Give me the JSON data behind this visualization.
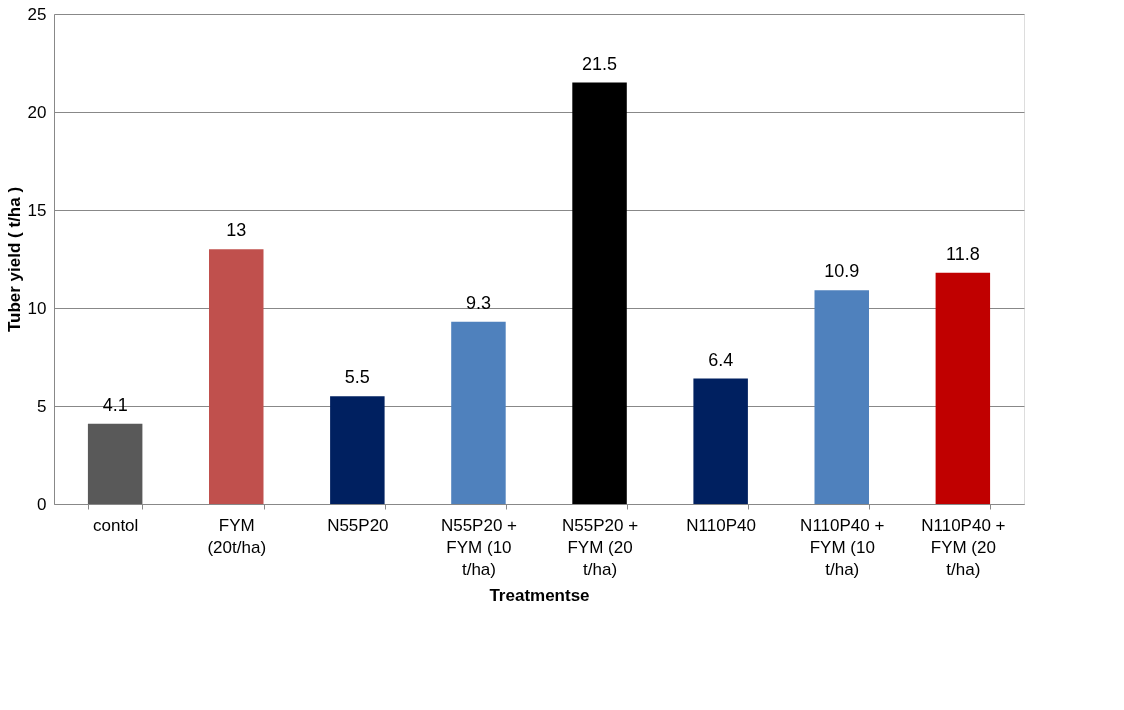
{
  "chart_data": {
    "type": "bar",
    "xlabel": "Treatmentse",
    "ylabel": "Tuber yield ( t/ha )",
    "categories": [
      "contol",
      "FYM\n(20t/ha)",
      "N55P20",
      "N55P20 +\nFYM (10\nt/ha)",
      "N55P20 +\nFYM (20\nt/ha)",
      "N110P40",
      "N110P40 +\nFYM (10\nt/ha)",
      "N110P40 +\nFYM (20\nt/ha)"
    ],
    "values": [
      4.1,
      13,
      5.5,
      9.3,
      21.5,
      6.4,
      10.9,
      11.8
    ],
    "colors": [
      "#595959",
      "#c0504d",
      "#002060",
      "#4f81bd",
      "#000000",
      "#002060",
      "#4f81bd",
      "#c00000"
    ],
    "ylim": [
      0,
      25
    ],
    "yticks": [
      0,
      5,
      10,
      15,
      20,
      25
    ],
    "grid": "y",
    "data_labels": true,
    "legend": false
  }
}
